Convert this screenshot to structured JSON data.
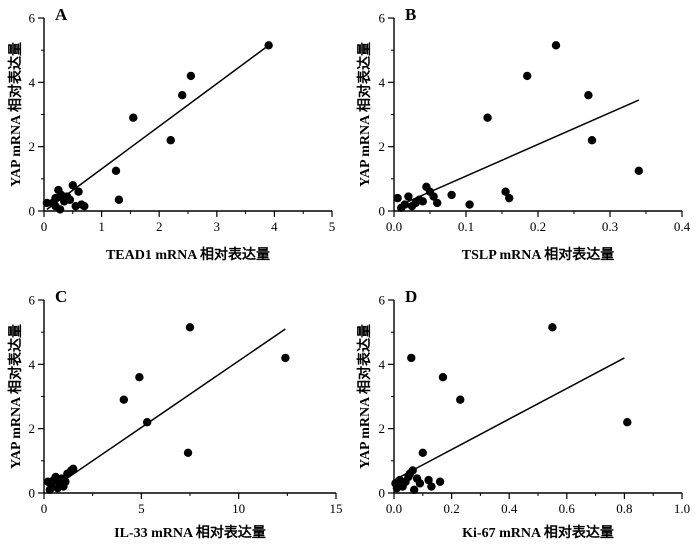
{
  "chart_data": [
    {
      "type": "scatter",
      "panel_label": "A",
      "xlabel": "TEAD1 mRNA 相对表达量",
      "ylabel": "YAP mRNA 相对表达量",
      "xlim": [
        0,
        5
      ],
      "ylim": [
        0,
        6
      ],
      "xticks": [
        "0",
        "1",
        "2",
        "3",
        "4",
        "5"
      ],
      "yticks": [
        "0",
        "2",
        "4",
        "6"
      ],
      "grid": false,
      "trendline": {
        "x0": 0.05,
        "y0": 0.05,
        "x1": 3.9,
        "y1": 5.15
      },
      "points": [
        {
          "x": 0.05,
          "y": 0.25
        },
        {
          "x": 0.15,
          "y": 0.25
        },
        {
          "x": 0.2,
          "y": 0.15
        },
        {
          "x": 0.2,
          "y": 0.4
        },
        {
          "x": 0.25,
          "y": 0.65
        },
        {
          "x": 0.28,
          "y": 0.05
        },
        {
          "x": 0.3,
          "y": 0.5
        },
        {
          "x": 0.35,
          "y": 0.3
        },
        {
          "x": 0.4,
          "y": 0.45
        },
        {
          "x": 0.45,
          "y": 0.35
        },
        {
          "x": 0.5,
          "y": 0.8
        },
        {
          "x": 0.55,
          "y": 0.15
        },
        {
          "x": 0.6,
          "y": 0.6
        },
        {
          "x": 0.65,
          "y": 0.2
        },
        {
          "x": 0.7,
          "y": 0.15
        },
        {
          "x": 1.25,
          "y": 1.25
        },
        {
          "x": 1.3,
          "y": 0.35
        },
        {
          "x": 1.55,
          "y": 2.9
        },
        {
          "x": 2.2,
          "y": 2.2
        },
        {
          "x": 2.4,
          "y": 3.6
        },
        {
          "x": 2.55,
          "y": 4.2
        },
        {
          "x": 3.9,
          "y": 5.15
        }
      ]
    },
    {
      "type": "scatter",
      "panel_label": "B",
      "xlabel": "TSLP mRNA 相对表达量",
      "ylabel": "YAP mRNA 相对表达量",
      "xlim": [
        0,
        0.4
      ],
      "ylim": [
        0,
        6
      ],
      "xticks": [
        "0.0",
        "0.1",
        "0.2",
        "0.3",
        "0.4"
      ],
      "yticks": [
        "0",
        "2",
        "4",
        "6"
      ],
      "grid": false,
      "trendline": {
        "x0": 0.01,
        "y0": 0.2,
        "x1": 0.34,
        "y1": 3.45
      },
      "points": [
        {
          "x": 0.005,
          "y": 0.4
        },
        {
          "x": 0.01,
          "y": 0.1
        },
        {
          "x": 0.015,
          "y": 0.2
        },
        {
          "x": 0.02,
          "y": 0.45
        },
        {
          "x": 0.025,
          "y": 0.15
        },
        {
          "x": 0.03,
          "y": 0.25
        },
        {
          "x": 0.035,
          "y": 0.35
        },
        {
          "x": 0.04,
          "y": 0.3
        },
        {
          "x": 0.045,
          "y": 0.75
        },
        {
          "x": 0.05,
          "y": 0.6
        },
        {
          "x": 0.055,
          "y": 0.45
        },
        {
          "x": 0.06,
          "y": 0.25
        },
        {
          "x": 0.08,
          "y": 0.5
        },
        {
          "x": 0.105,
          "y": 0.2
        },
        {
          "x": 0.13,
          "y": 2.9
        },
        {
          "x": 0.155,
          "y": 0.6
        },
        {
          "x": 0.16,
          "y": 0.4
        },
        {
          "x": 0.185,
          "y": 4.2
        },
        {
          "x": 0.225,
          "y": 5.15
        },
        {
          "x": 0.27,
          "y": 3.6
        },
        {
          "x": 0.275,
          "y": 2.2
        },
        {
          "x": 0.34,
          "y": 1.25
        }
      ]
    },
    {
      "type": "scatter",
      "panel_label": "C",
      "xlabel": "IL-33 mRNA 相对表达量",
      "ylabel": "YAP mRNA 相对表达量",
      "xlim": [
        0,
        15
      ],
      "ylim": [
        0,
        6
      ],
      "xticks": [
        "0",
        "5",
        "10",
        "15"
      ],
      "yticks": [
        "0",
        "2",
        "4",
        "6"
      ],
      "grid": false,
      "trendline": {
        "x0": 0.2,
        "y0": 0.05,
        "x1": 12.4,
        "y1": 5.1
      },
      "points": [
        {
          "x": 0.2,
          "y": 0.35
        },
        {
          "x": 0.3,
          "y": 0.1
        },
        {
          "x": 0.4,
          "y": 0.2
        },
        {
          "x": 0.5,
          "y": 0.4
        },
        {
          "x": 0.6,
          "y": 0.5
        },
        {
          "x": 0.7,
          "y": 0.15
        },
        {
          "x": 0.8,
          "y": 0.3
        },
        {
          "x": 0.9,
          "y": 0.45
        },
        {
          "x": 1.0,
          "y": 0.2
        },
        {
          "x": 1.1,
          "y": 0.35
        },
        {
          "x": 1.2,
          "y": 0.6
        },
        {
          "x": 1.4,
          "y": 0.7
        },
        {
          "x": 1.5,
          "y": 0.75
        },
        {
          "x": 4.1,
          "y": 2.9
        },
        {
          "x": 4.9,
          "y": 3.6
        },
        {
          "x": 5.3,
          "y": 2.2
        },
        {
          "x": 7.4,
          "y": 1.25
        },
        {
          "x": 7.5,
          "y": 5.15
        },
        {
          "x": 12.4,
          "y": 4.2
        }
      ]
    },
    {
      "type": "scatter",
      "panel_label": "D",
      "xlabel": "Ki-67 mRNA 相对表达量",
      "ylabel": "YAP mRNA 相对表达量",
      "xlim": [
        0,
        1.0
      ],
      "ylim": [
        0,
        6
      ],
      "xticks": [
        "0.0",
        "0.2",
        "0.4",
        "0.6",
        "0.8",
        "1.0"
      ],
      "yticks": [
        "0",
        "2",
        "4",
        "6"
      ],
      "grid": false,
      "trendline": {
        "x0": 0.0,
        "y0": 0.4,
        "x1": 0.8,
        "y1": 4.2
      },
      "points": [
        {
          "x": 0.005,
          "y": 0.3
        },
        {
          "x": 0.01,
          "y": 0.15
        },
        {
          "x": 0.02,
          "y": 0.4
        },
        {
          "x": 0.03,
          "y": 0.2
        },
        {
          "x": 0.04,
          "y": 0.35
        },
        {
          "x": 0.05,
          "y": 0.5
        },
        {
          "x": 0.055,
          "y": 0.6
        },
        {
          "x": 0.06,
          "y": 4.2
        },
        {
          "x": 0.065,
          "y": 0.7
        },
        {
          "x": 0.07,
          "y": 0.1
        },
        {
          "x": 0.08,
          "y": 0.45
        },
        {
          "x": 0.09,
          "y": 0.3
        },
        {
          "x": 0.1,
          "y": 1.25
        },
        {
          "x": 0.12,
          "y": 0.4
        },
        {
          "x": 0.13,
          "y": 0.2
        },
        {
          "x": 0.16,
          "y": 0.35
        },
        {
          "x": 0.17,
          "y": 3.6
        },
        {
          "x": 0.23,
          "y": 2.9
        },
        {
          "x": 0.55,
          "y": 5.15
        },
        {
          "x": 0.81,
          "y": 2.2
        }
      ]
    }
  ]
}
